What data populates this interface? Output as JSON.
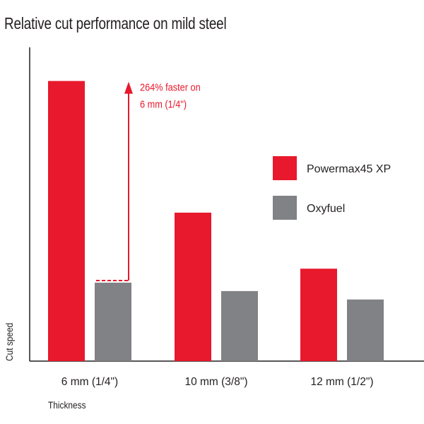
{
  "chart_data": {
    "type": "bar",
    "title": "Relative cut performance on mild steel",
    "xlabel": "Thickness",
    "ylabel": "Cut speed",
    "categories": [
      "6 mm (1/4\")",
      "10 mm (3/8\")",
      "12 mm (1/2\")"
    ],
    "series": [
      {
        "name": "Powermax45 XP",
        "values": [
          100,
          53,
          33
        ]
      },
      {
        "name": "Oxyfuel",
        "values": [
          28,
          25,
          22
        ]
      }
    ],
    "ylim": [
      0,
      112
    ],
    "grid": false,
    "legend_position": "right",
    "annotation": {
      "text_lines": [
        "264% faster on",
        "6 mm (1/4\")"
      ],
      "category_index": 0
    },
    "colors": {
      "Powermax45 XP": "#e8192c",
      "Oxyfuel": "#808285",
      "axis": "#231f20",
      "annotation": "#e8192c"
    }
  }
}
